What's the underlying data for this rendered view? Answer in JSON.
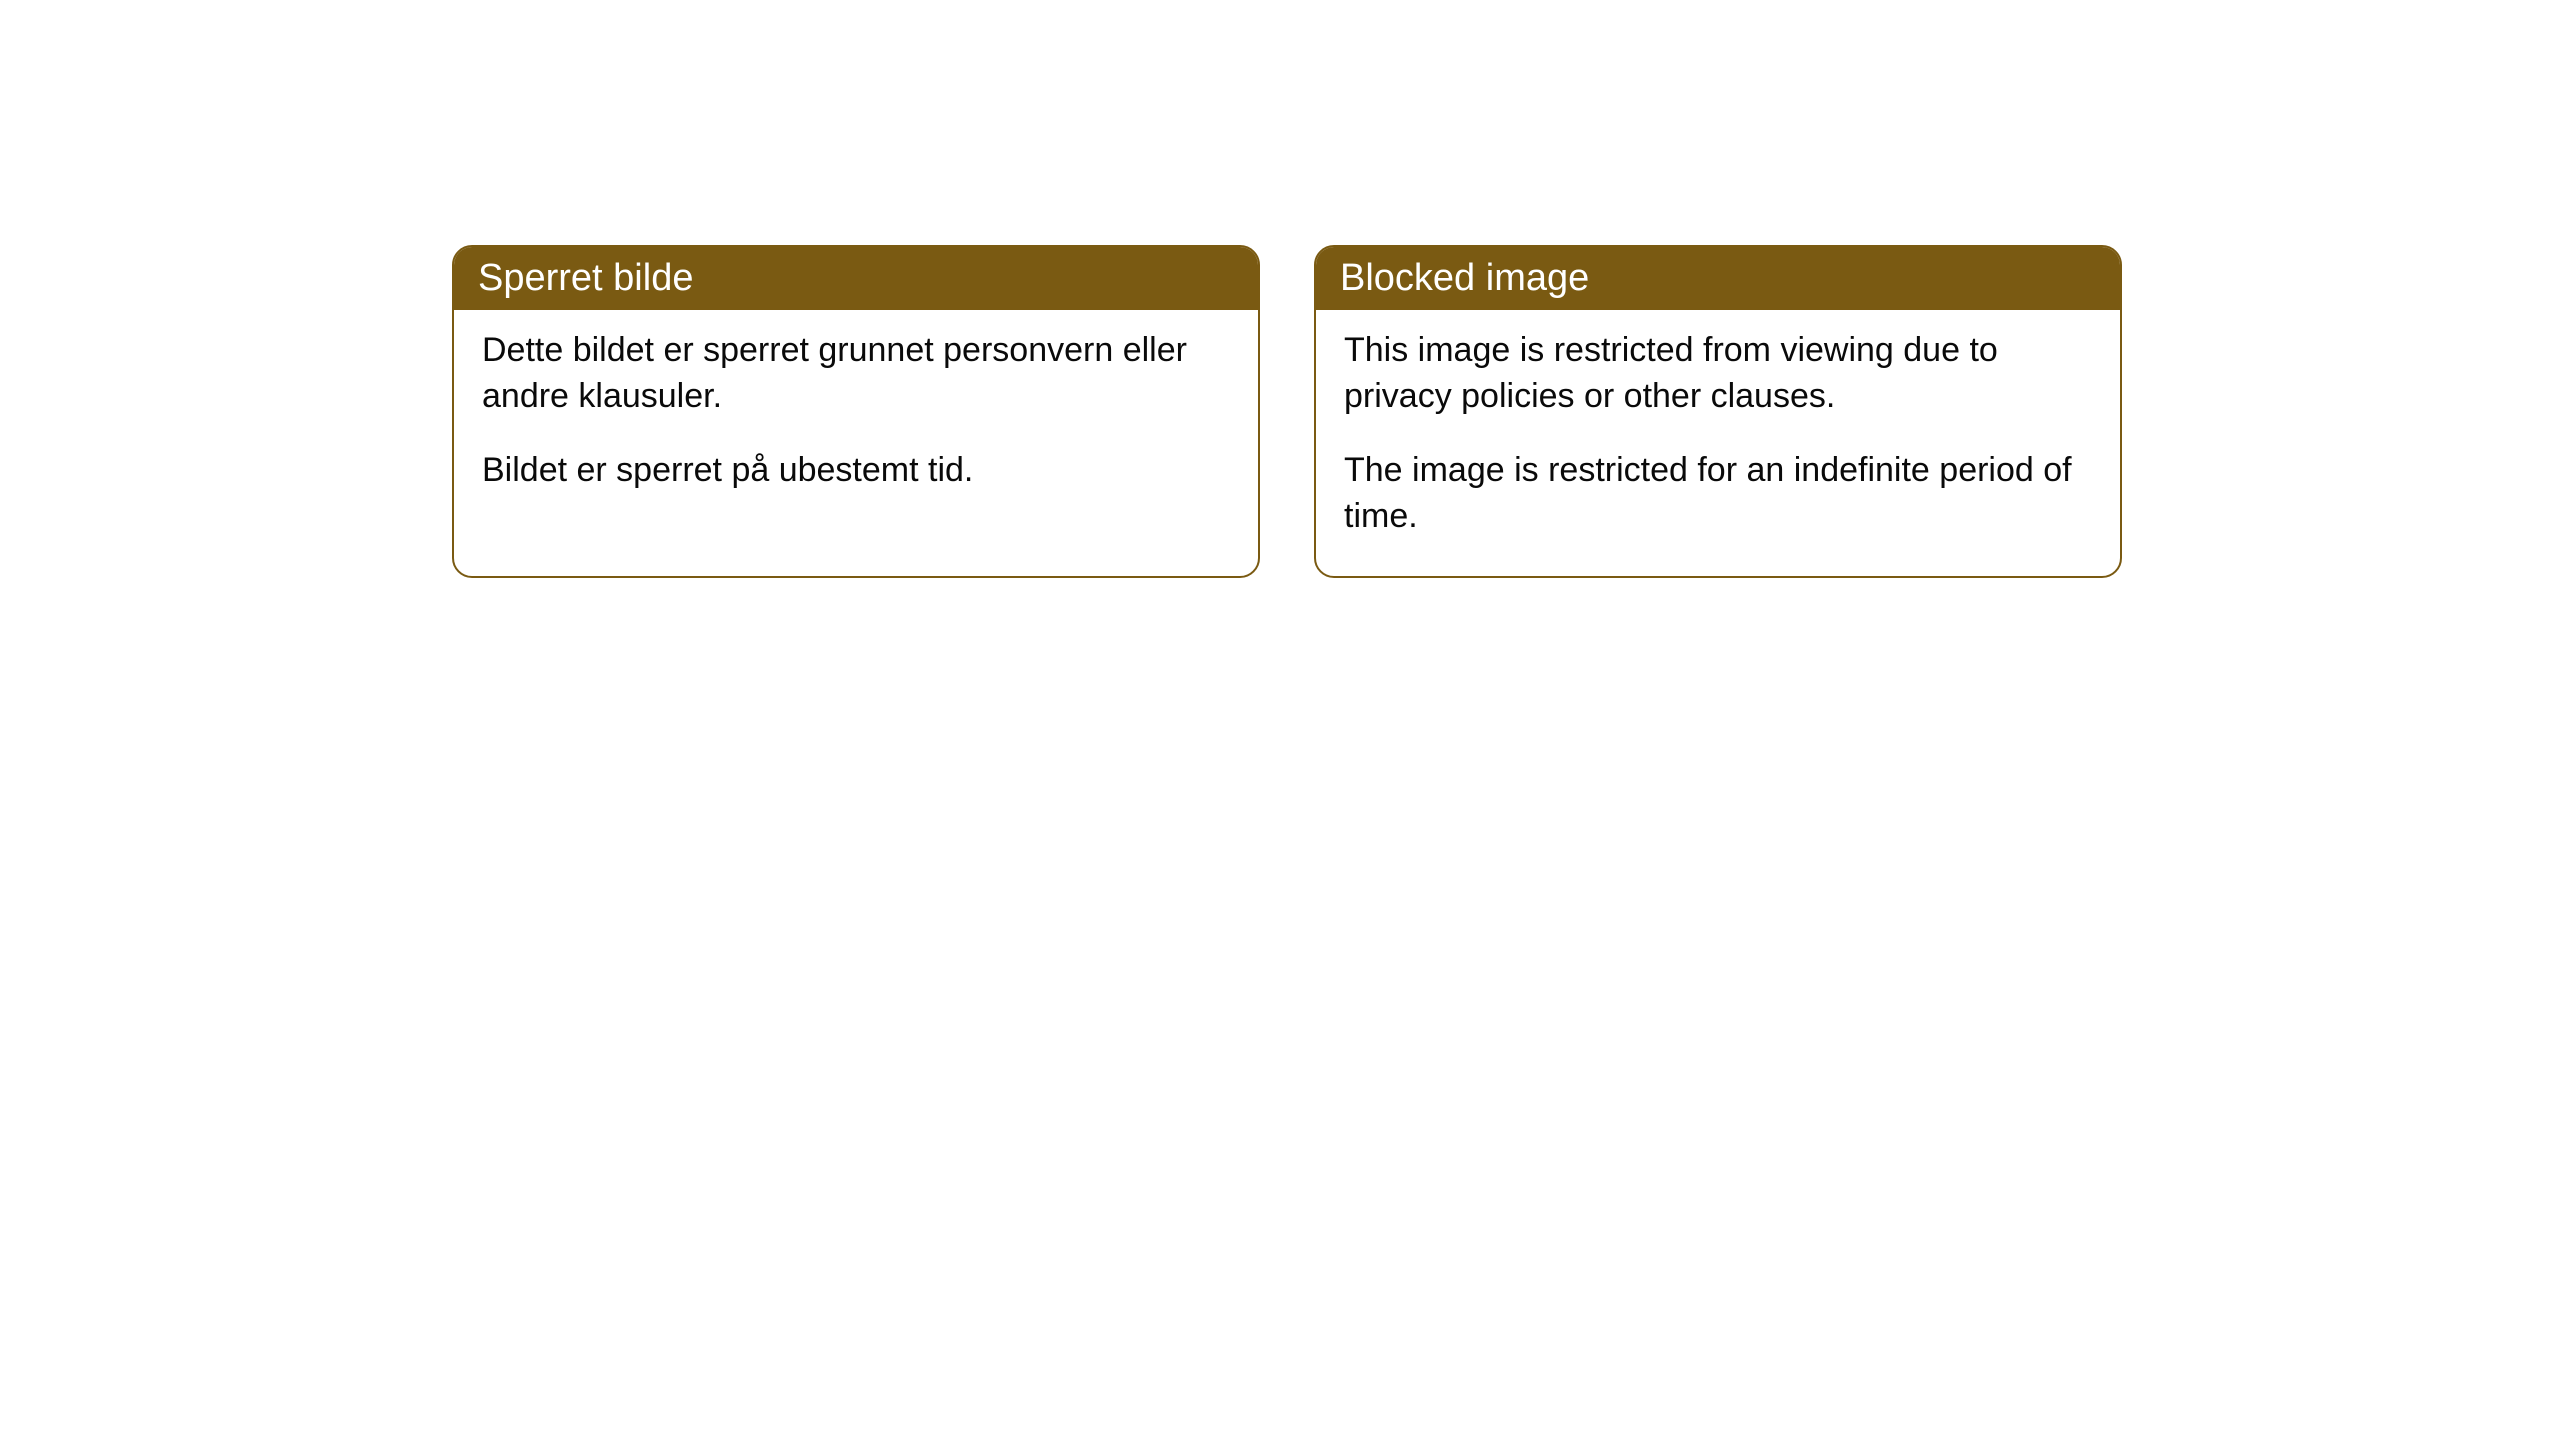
{
  "cards": [
    {
      "header": "Sperret bilde",
      "paragraph1": "Dette bildet er sperret grunnet personvern eller andre klausuler.",
      "paragraph2": "Bildet er sperret på ubestemt tid."
    },
    {
      "header": "Blocked image",
      "paragraph1": "This image is restricted from viewing due to privacy policies or other clauses.",
      "paragraph2": "The image is restricted for an indefinite period of time."
    }
  ],
  "styles": {
    "header_bg_color": "#7a5a12",
    "header_text_color": "#ffffff",
    "border_color": "#7a5a12",
    "body_bg_color": "#ffffff",
    "body_text_color": "#0a0a0a",
    "border_radius": "20px",
    "header_fontsize": 38,
    "body_fontsize": 34
  }
}
